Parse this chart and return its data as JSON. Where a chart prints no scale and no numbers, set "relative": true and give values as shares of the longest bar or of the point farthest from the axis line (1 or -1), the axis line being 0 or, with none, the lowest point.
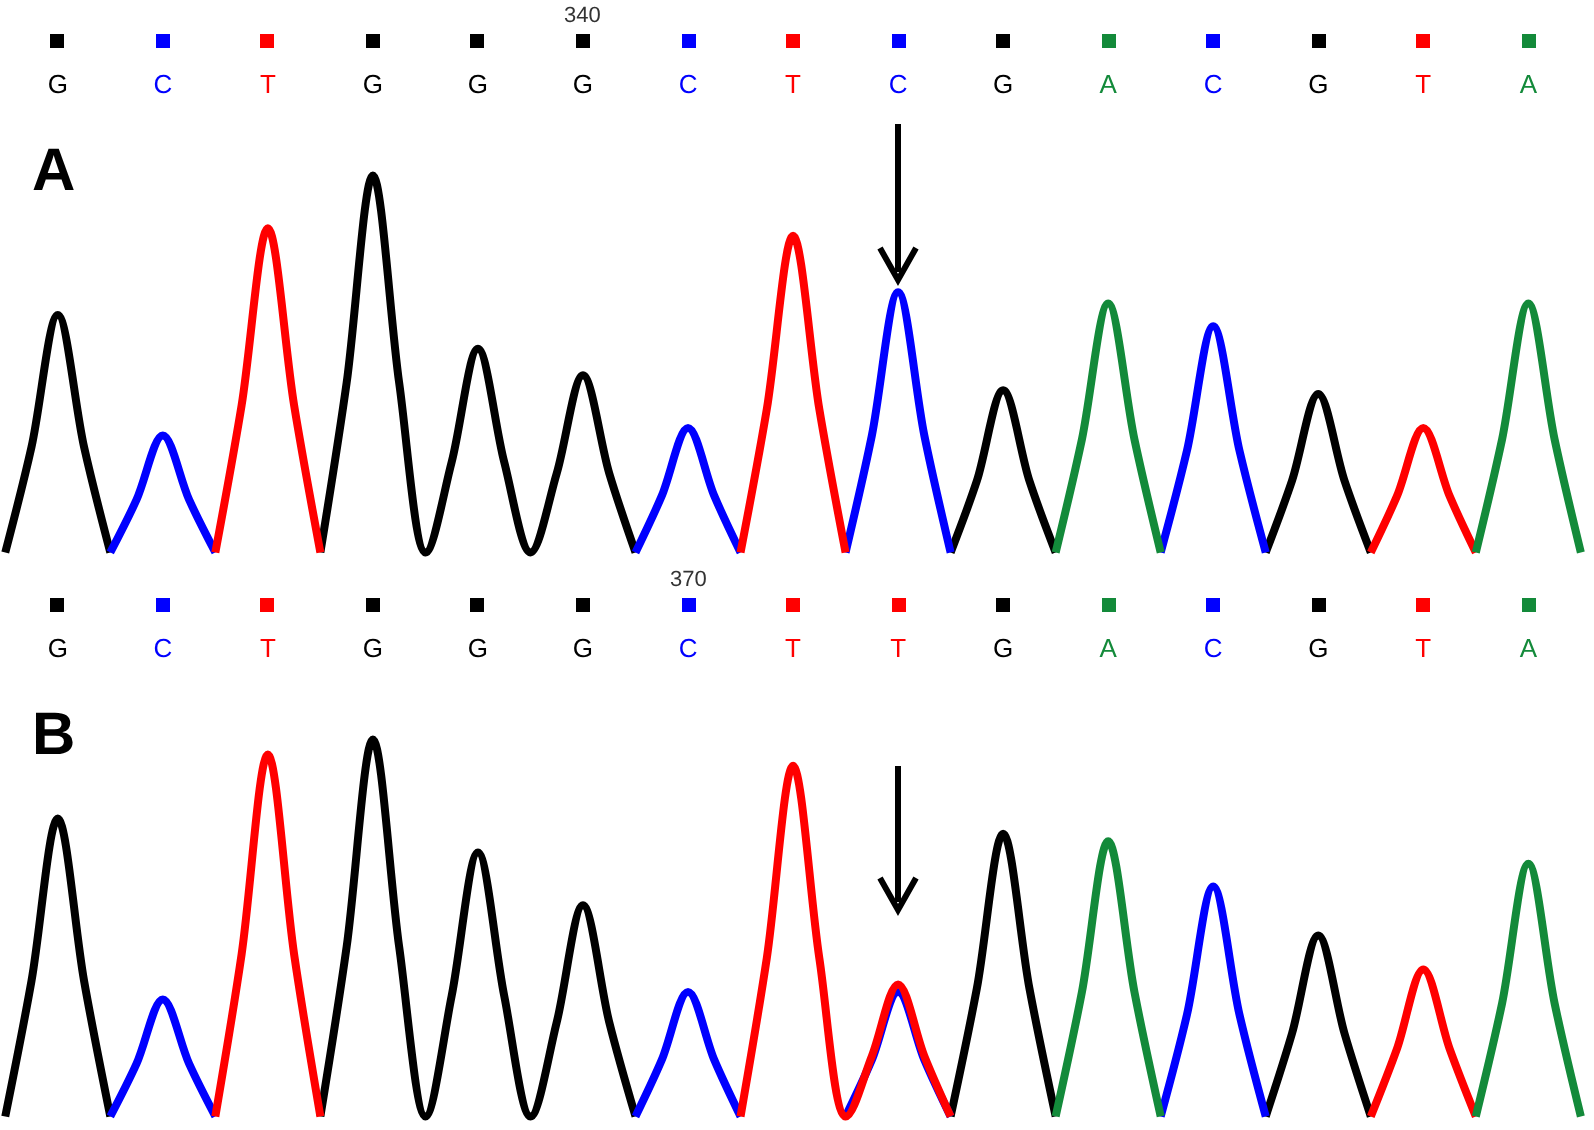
{
  "chart_data": [
    {
      "type": "line",
      "title": "A",
      "annotations": [
        "340"
      ],
      "relative": true,
      "categories": [
        null,
        null,
        "G",
        null,
        null,
        null,
        "C",
        null,
        null,
        null,
        "T",
        null,
        null,
        null,
        "G",
        null,
        null,
        null,
        "G",
        null,
        null,
        null,
        "G",
        null,
        null,
        null,
        "C",
        null,
        null,
        null,
        "T",
        null,
        null,
        null,
        "C",
        null,
        null,
        null,
        "G",
        null,
        null,
        null,
        "A",
        null,
        null,
        null,
        "C",
        null,
        null,
        null,
        "G",
        null,
        null,
        null,
        "T",
        null,
        null,
        null,
        "A",
        null,
        null
      ],
      "series": [
        {
          "color": "#000000",
          "values": [
            0,
            0.28,
            0.63,
            0.28,
            0,
            null,
            null,
            null,
            null,
            null,
            null,
            null,
            0,
            0.45,
            1,
            0.45,
            0,
            0.24,
            0.54,
            0.24,
            0,
            0.21,
            0.47,
            0.21,
            0,
            null,
            null,
            null,
            null,
            null,
            null,
            null,
            null,
            null,
            null,
            null,
            0,
            0.19,
            0.43,
            0.19,
            0,
            null,
            null,
            null,
            null,
            null,
            null,
            null,
            0,
            0.19,
            0.42,
            0.19,
            0,
            null,
            null,
            null,
            null,
            null,
            null,
            null,
            null
          ]
        },
        {
          "color": "#0000ff",
          "values": [
            null,
            null,
            null,
            null,
            0,
            0.14,
            0.31,
            0.14,
            0,
            null,
            null,
            null,
            null,
            null,
            null,
            null,
            null,
            null,
            null,
            null,
            null,
            null,
            null,
            null,
            0,
            0.15,
            0.33,
            0.15,
            0,
            null,
            null,
            null,
            0,
            0.31,
            0.69,
            0.31,
            0,
            null,
            null,
            null,
            null,
            null,
            null,
            null,
            0,
            0.27,
            0.6,
            0.27,
            0,
            null,
            null,
            null,
            null,
            null,
            null,
            null,
            null,
            null,
            null,
            null,
            null
          ]
        },
        {
          "color": "#ff0000",
          "values": [
            null,
            null,
            null,
            null,
            null,
            null,
            null,
            null,
            0,
            0.39,
            0.86,
            0.39,
            0,
            null,
            null,
            null,
            null,
            null,
            null,
            null,
            null,
            null,
            null,
            null,
            null,
            null,
            null,
            null,
            0,
            0.38,
            0.84,
            0.38,
            0,
            null,
            null,
            null,
            null,
            null,
            null,
            null,
            null,
            null,
            null,
            null,
            null,
            null,
            null,
            null,
            null,
            null,
            null,
            null,
            0,
            0.15,
            0.33,
            0.15,
            0,
            null,
            null,
            null,
            null
          ]
        },
        {
          "color": "#138a3a",
          "values": [
            null,
            null,
            null,
            null,
            null,
            null,
            null,
            null,
            null,
            null,
            null,
            null,
            null,
            null,
            null,
            null,
            null,
            null,
            null,
            null,
            null,
            null,
            null,
            null,
            null,
            null,
            null,
            null,
            null,
            null,
            null,
            null,
            null,
            null,
            null,
            null,
            null,
            null,
            null,
            null,
            0,
            0.3,
            0.66,
            0.3,
            0,
            null,
            null,
            null,
            null,
            null,
            null,
            null,
            null,
            null,
            null,
            null,
            0,
            0.3,
            0.66,
            0.3,
            0
          ]
        }
      ]
    },
    {
      "type": "line",
      "title": "B",
      "annotations": [
        "370"
      ],
      "relative": true,
      "categories": [
        null,
        null,
        "G",
        null,
        null,
        null,
        "C",
        null,
        null,
        null,
        "T",
        null,
        null,
        null,
        "G",
        null,
        null,
        null,
        "G",
        null,
        null,
        null,
        "G",
        null,
        null,
        null,
        "C",
        null,
        null,
        null,
        "T",
        null,
        null,
        null,
        "T",
        null,
        null,
        null,
        "G",
        null,
        null,
        null,
        "A",
        null,
        null,
        null,
        "C",
        null,
        null,
        null,
        "G",
        null,
        null,
        null,
        "T",
        null,
        null,
        null,
        "A",
        null,
        null
      ],
      "series": [
        {
          "color": "#000000",
          "values": [
            0,
            0.36,
            0.79,
            0.36,
            0,
            null,
            null,
            null,
            null,
            null,
            null,
            null,
            0,
            0.45,
            1,
            0.45,
            0,
            0.32,
            0.7,
            0.32,
            0,
            0.25,
            0.56,
            0.25,
            0,
            null,
            null,
            null,
            null,
            null,
            null,
            null,
            null,
            null,
            null,
            null,
            0,
            0.34,
            0.75,
            0.34,
            0,
            null,
            null,
            null,
            null,
            null,
            null,
            null,
            0,
            0.22,
            0.48,
            0.22,
            0,
            null,
            null,
            null,
            null,
            null,
            null,
            null,
            null
          ]
        },
        {
          "color": "#0000ff",
          "values": [
            null,
            null,
            null,
            null,
            0,
            0.14,
            0.31,
            0.14,
            0,
            null,
            null,
            null,
            null,
            null,
            null,
            null,
            null,
            null,
            null,
            null,
            null,
            null,
            null,
            null,
            0,
            0.15,
            0.33,
            0.15,
            0,
            null,
            null,
            null,
            0,
            0.15,
            0.33,
            0.15,
            0,
            null,
            null,
            null,
            null,
            null,
            null,
            null,
            0,
            0.27,
            0.61,
            0.27,
            0,
            null,
            null,
            null,
            null,
            null,
            null,
            null,
            null,
            null,
            null,
            null,
            null
          ]
        },
        {
          "color": "#ff0000",
          "values": [
            null,
            null,
            null,
            null,
            null,
            null,
            null,
            null,
            0,
            0.43,
            0.96,
            0.43,
            0,
            null,
            null,
            null,
            null,
            null,
            null,
            null,
            null,
            null,
            null,
            null,
            null,
            null,
            null,
            null,
            0,
            0.42,
            0.93,
            0.42,
            0,
            0.16,
            0.35,
            0.16,
            0,
            null,
            null,
            null,
            null,
            null,
            null,
            null,
            null,
            null,
            null,
            null,
            null,
            null,
            null,
            null,
            0,
            0.18,
            0.39,
            0.18,
            0,
            null,
            null,
            null,
            null
          ]
        },
        {
          "color": "#138a3a",
          "values": [
            null,
            null,
            null,
            null,
            null,
            null,
            null,
            null,
            null,
            null,
            null,
            null,
            null,
            null,
            null,
            null,
            null,
            null,
            null,
            null,
            null,
            null,
            null,
            null,
            null,
            null,
            null,
            null,
            null,
            null,
            null,
            null,
            null,
            null,
            null,
            null,
            null,
            null,
            null,
            null,
            0,
            0.33,
            0.73,
            0.33,
            0,
            null,
            null,
            null,
            null,
            null,
            null,
            null,
            null,
            null,
            null,
            null,
            0,
            0.3,
            0.67,
            0.3,
            0
          ]
        }
      ]
    }
  ]
}
